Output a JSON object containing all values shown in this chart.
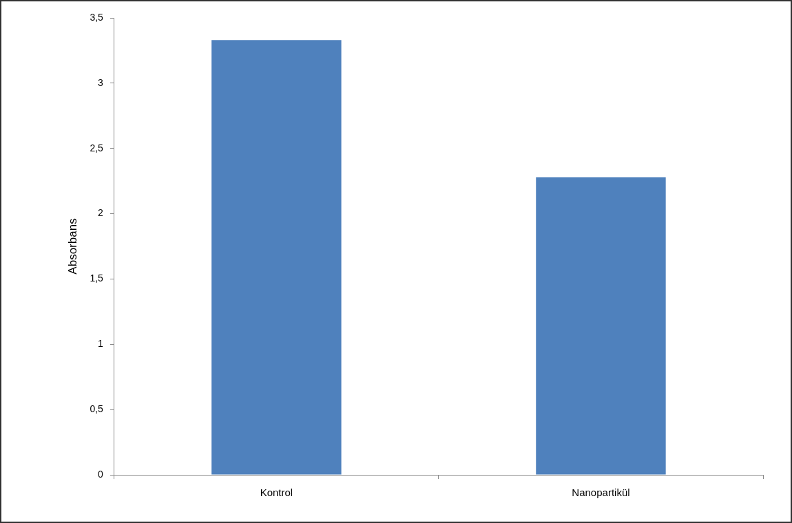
{
  "chart_data": {
    "type": "bar",
    "ylabel": "Absorbans",
    "categories": [
      "Kontrol",
      "Nanopartikül"
    ],
    "values": [
      3.33,
      2.28
    ],
    "color": "#4f81bd",
    "ylim": [
      0,
      3.5
    ],
    "yticks": [
      0,
      {
        "value": 0.5,
        "label": "0,5"
      },
      1,
      {
        "value": 1.5,
        "label": "1,5"
      },
      2,
      {
        "value": 2.5,
        "label": "2,5"
      },
      3,
      {
        "value": 3.5,
        "label": "3,5"
      }
    ],
    "grid": false,
    "legend": false
  }
}
